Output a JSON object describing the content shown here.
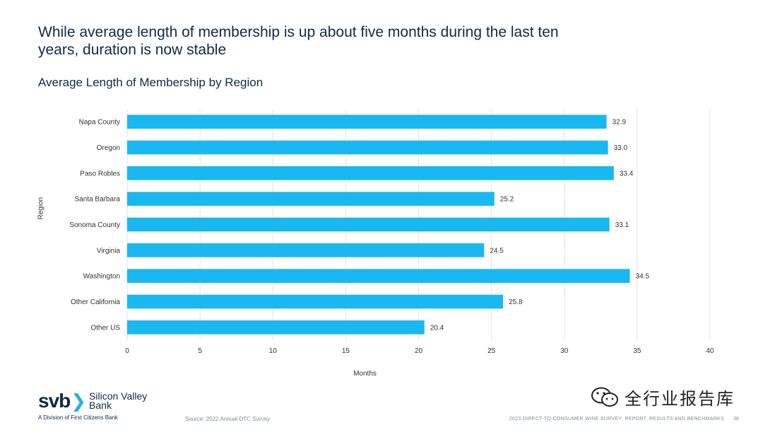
{
  "slide": {
    "title": "While average length of membership is up about five months during the last ten years, duration is now stable",
    "source": "Source: 2022 Annual DTC Survey",
    "footer": "2023 DIRECT-TO-CONSUMER WINE SURVEY: REPORT, RESULTS AND BENCHMARKS",
    "page_number": "38"
  },
  "logo": {
    "mark": "svb",
    "name_line1": "Silicon Valley",
    "name_line2": "Bank",
    "division": "A Division of First Citizens Bank"
  },
  "watermark": {
    "text": "全行业报告库"
  },
  "colors": {
    "bar": "#1ab8f0",
    "text": "#0f2b46",
    "grid": "#e2e2e2"
  },
  "chart_data": {
    "type": "bar",
    "orientation": "horizontal",
    "title": "Average Length of Membership by Region",
    "xlabel": "Months",
    "ylabel": "Region",
    "xlim": [
      0,
      40
    ],
    "xticks": [
      0,
      5,
      10,
      15,
      20,
      25,
      30,
      35,
      40
    ],
    "grid": true,
    "categories": [
      "Napa County",
      "Oregon",
      "Paso Robles",
      "Santa Barbara",
      "Sonoma County",
      "Virginia",
      "Washington",
      "Other California",
      "Other US"
    ],
    "values": [
      32.9,
      33.0,
      33.4,
      25.2,
      33.1,
      24.5,
      34.5,
      25.8,
      20.4
    ],
    "value_labels": [
      "32.9",
      "33.0",
      "33.4",
      "25.2",
      "33.1",
      "24.5",
      "34.5",
      "25.8",
      "20.4"
    ]
  }
}
